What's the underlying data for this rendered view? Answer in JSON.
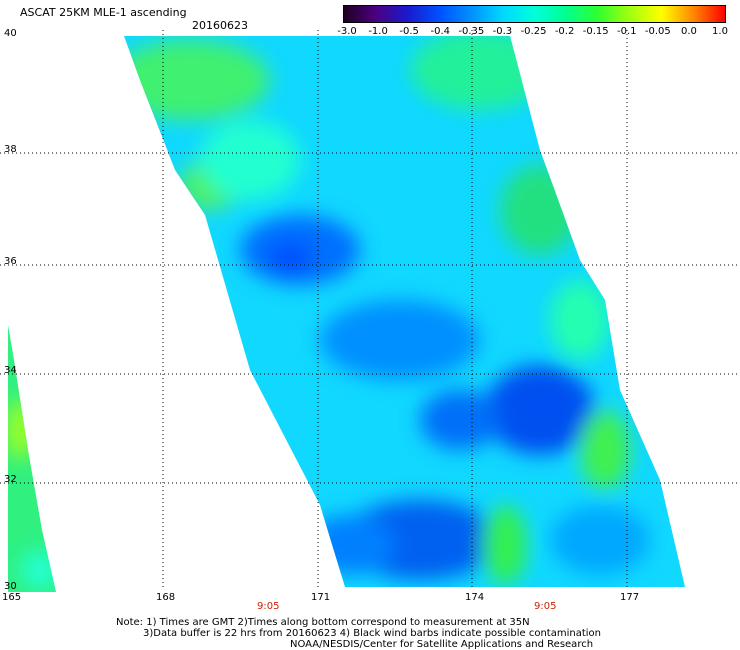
{
  "header": {
    "title": "ASCAT 25KM MLE-1 ascending",
    "date": "20160623"
  },
  "colorbar": {
    "labels": [
      "-3.0",
      "-1.0",
      "-0.5",
      "-0.4",
      "-0.35",
      "-0.3",
      "-0.25",
      "-0.2",
      "-0.15",
      "-0.1",
      "-0.05",
      "0.0",
      "1.0"
    ],
    "colors": [
      "#200020",
      "#4b0082",
      "#1a1acc",
      "#0050ff",
      "#0090ff",
      "#00d8ff",
      "#00ffd8",
      "#00ff90",
      "#30ff30",
      "#a0ff10",
      "#ffff00",
      "#ff8800",
      "#ff0000"
    ]
  },
  "axes": {
    "lat_ticks": [
      "40",
      "38",
      "36",
      "34",
      "32",
      "30"
    ],
    "lon_ticks": [
      "165",
      "168",
      "171",
      "174",
      "177"
    ],
    "times": [
      "9:05",
      "9:05"
    ]
  },
  "notes": {
    "line1": "Note: 1) Times are GMT 2)Times along bottom correspond to measurement at 35N",
    "line2": "3)Data buffer is 22 hrs from 20160623 4) Black wind barbs indicate possible contamination",
    "line3": "NOAA/NESDIS/Center for Satellite Applications and Research"
  }
}
